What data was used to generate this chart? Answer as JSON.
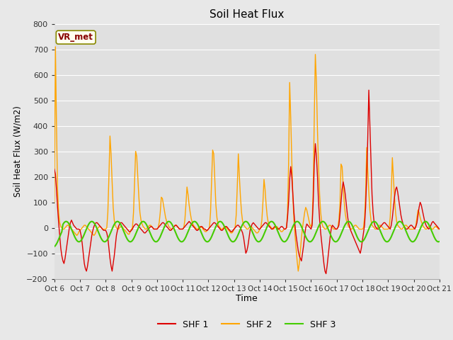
{
  "title": "Soil Heat Flux",
  "xlabel": "Time",
  "ylabel": "Soil Heat Flux (W/m2)",
  "ylim": [
    -200,
    800
  ],
  "yticks": [
    -200,
    -100,
    0,
    100,
    200,
    300,
    400,
    500,
    600,
    700,
    800
  ],
  "bg_color": "#e8e8e8",
  "plot_bg_color": "#e0e0e0",
  "grid_color": "#ffffff",
  "shf1_color": "#dd0000",
  "shf2_color": "#ffa500",
  "shf3_color": "#44cc00",
  "legend_box_facecolor": "#fffff0",
  "legend_box_edgecolor": "#888800",
  "vr_met_text_color": "#880000",
  "n_points": 361,
  "xtick_labels": [
    "Oct 6",
    "Oct 7",
    "Oct 8",
    "Oct 9",
    "Oct 10",
    "Oct 11",
    "Oct 12",
    "Oct 13",
    "Oct 14",
    "Oct 15",
    "Oct 16",
    "Oct 17",
    "Oct 18",
    "Oct 19",
    "Oct 20",
    "Oct 21"
  ],
  "xtick_positions": [
    0,
    24,
    48,
    72,
    96,
    120,
    144,
    168,
    192,
    216,
    240,
    264,
    288,
    312,
    336,
    360
  ]
}
